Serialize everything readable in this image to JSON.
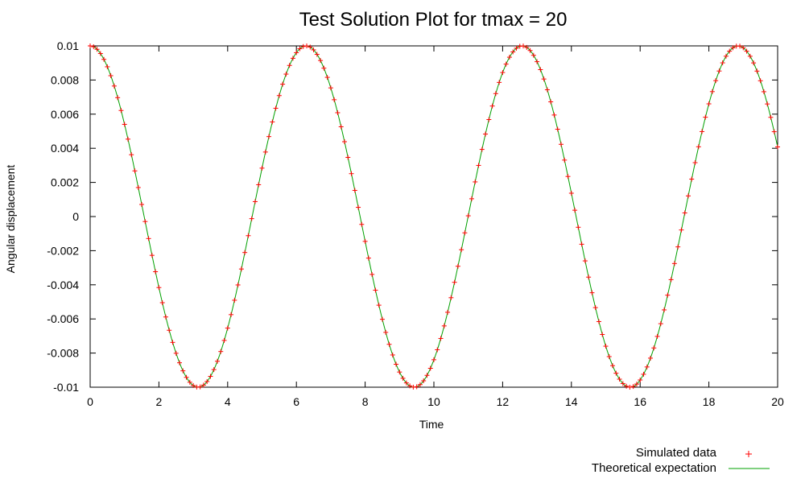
{
  "chart_data": {
    "type": "line",
    "title": "Test Solution Plot for tmax = 20",
    "xlabel": "Time",
    "ylabel": "Angular displacement",
    "xlim": [
      0,
      20
    ],
    "ylim": [
      -0.01,
      0.01
    ],
    "x_ticks": [
      0,
      2,
      4,
      6,
      8,
      10,
      12,
      14,
      16,
      18,
      20
    ],
    "y_ticks": [
      -0.01,
      -0.008,
      -0.006,
      -0.004,
      -0.002,
      0,
      0.002,
      0.004,
      0.006,
      0.008,
      0.01
    ],
    "x_tick_labels": [
      "0",
      "2",
      "4",
      "6",
      "8",
      "10",
      "12",
      "14",
      "16",
      "18",
      "20"
    ],
    "y_tick_labels": [
      "-0.01",
      "-0.008",
      "-0.006",
      "-0.004",
      "-0.002",
      "0",
      "0.002",
      "0.004",
      "0.006",
      "0.008",
      "0.01"
    ],
    "grid": false,
    "legend_position": "bottom-right",
    "series": [
      {
        "name": "Simulated data",
        "style": "points",
        "marker": "plus",
        "color": "#ff0000",
        "model": "y = 0.01*cos(t)",
        "x_step": 0.1,
        "x_range": [
          0,
          20
        ]
      },
      {
        "name": "Theoretical expectation",
        "style": "line",
        "color": "#00a000",
        "model": "y = 0.01*cos(t)",
        "x_range": [
          0,
          20
        ]
      }
    ]
  }
}
